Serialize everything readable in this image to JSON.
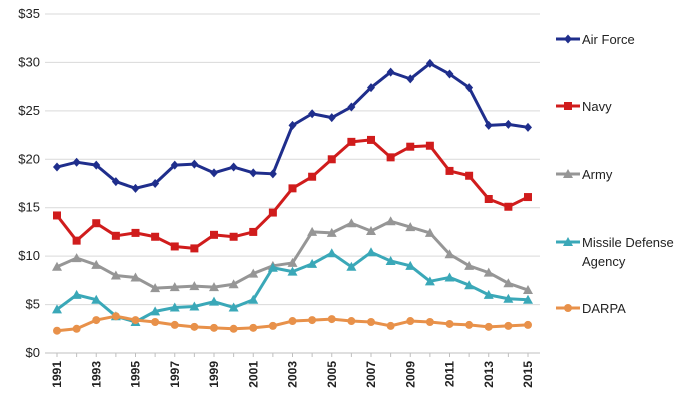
{
  "chart_data": {
    "type": "line",
    "title": "",
    "xlabel": "",
    "ylabel": "",
    "ylim": [
      0,
      35
    ],
    "y_ticks": [
      "$0",
      "$5",
      "$10",
      "$15",
      "$20",
      "$25",
      "$30",
      "$35"
    ],
    "y_tick_values": [
      0,
      5,
      10,
      15,
      20,
      25,
      30,
      35
    ],
    "x_tick_labels": [
      "1991",
      "1993",
      "1995",
      "1997",
      "1999",
      "2001",
      "2003",
      "2005",
      "2007",
      "2009",
      "2011",
      "2013",
      "2015"
    ],
    "x": [
      1991,
      1992,
      1993,
      1994,
      1995,
      1996,
      1997,
      1998,
      1999,
      2000,
      2001,
      2002,
      2003,
      2004,
      2005,
      2006,
      2007,
      2008,
      2009,
      2010,
      2011,
      2012,
      2013,
      2014,
      2015
    ],
    "grid": "horizontal",
    "legend_position": "right",
    "series": [
      {
        "name": "Air Force",
        "color": "#1f2e8c",
        "marker": "diamond",
        "values": [
          19.2,
          19.7,
          19.4,
          17.7,
          17.0,
          17.5,
          19.4,
          19.5,
          18.6,
          19.2,
          18.6,
          18.5,
          23.5,
          24.7,
          24.3,
          25.4,
          27.4,
          29.0,
          28.3,
          29.9,
          28.8,
          27.4,
          23.5,
          23.6,
          23.3
        ]
      },
      {
        "name": "Navy",
        "color": "#d01c1c",
        "marker": "square",
        "values": [
          14.2,
          11.6,
          13.4,
          12.1,
          12.4,
          12.0,
          11.0,
          10.8,
          12.2,
          12.0,
          12.5,
          14.5,
          17.0,
          18.2,
          20.0,
          21.8,
          22.0,
          20.2,
          21.3,
          21.4,
          18.8,
          18.3,
          15.9,
          15.1,
          16.1
        ]
      },
      {
        "name": "Army",
        "color": "#969696",
        "marker": "triangle",
        "values": [
          8.9,
          9.8,
          9.1,
          8.0,
          7.8,
          6.7,
          6.8,
          6.9,
          6.8,
          7.1,
          8.2,
          9.0,
          9.3,
          12.5,
          12.4,
          13.4,
          12.6,
          13.6,
          13.0,
          12.4,
          10.2,
          9.0,
          8.3,
          7.2,
          6.5
        ]
      },
      {
        "name": "Missile Defense Agency",
        "color": "#3aa8b8",
        "marker": "triangle",
        "values": [
          4.5,
          6.0,
          5.5,
          3.8,
          3.2,
          4.3,
          4.7,
          4.8,
          5.3,
          4.7,
          5.5,
          8.8,
          8.4,
          9.2,
          10.3,
          8.9,
          10.4,
          9.5,
          9.0,
          7.4,
          7.8,
          7.0,
          6.0,
          5.6,
          5.5
        ]
      },
      {
        "name": "DARPA",
        "color": "#e8914a",
        "marker": "circle",
        "values": [
          2.3,
          2.5,
          3.4,
          3.8,
          3.4,
          3.2,
          2.9,
          2.7,
          2.6,
          2.5,
          2.6,
          2.8,
          3.3,
          3.4,
          3.5,
          3.3,
          3.2,
          2.8,
          3.3,
          3.2,
          3.0,
          2.9,
          2.7,
          2.8,
          2.9
        ]
      }
    ],
    "legend_labels": {
      "air_force": "Air Force",
      "navy": "Navy",
      "army": "Army",
      "mda_line1": "Missile Defense",
      "mda_line2": "Agency",
      "darpa": "DARPA"
    }
  }
}
